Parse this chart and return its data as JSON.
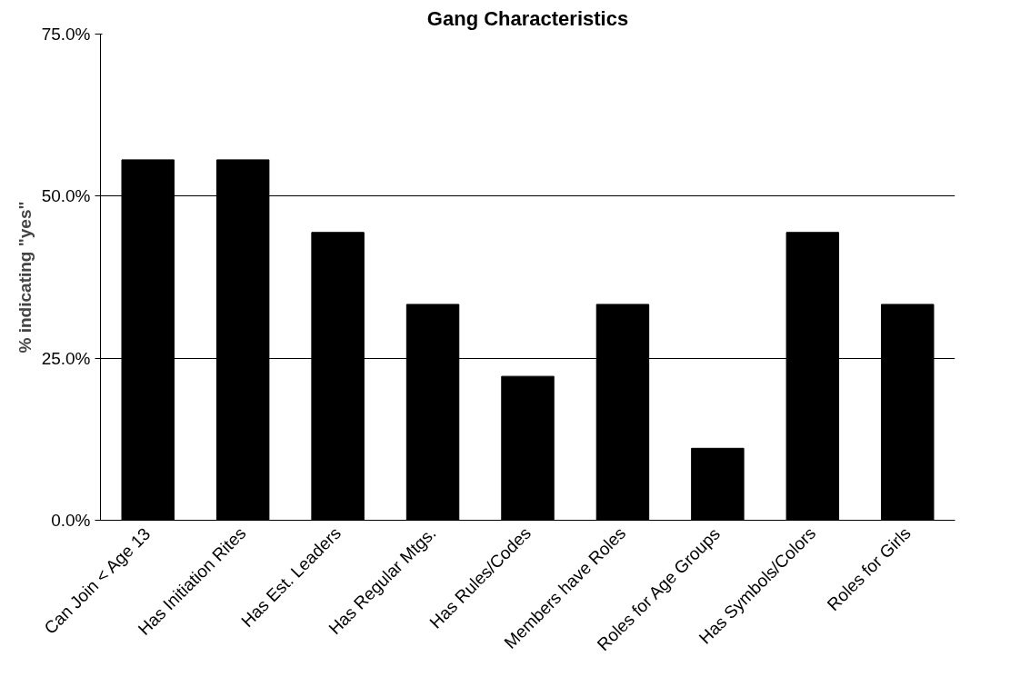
{
  "chart_data": {
    "type": "bar",
    "title": "Gang Characteristics",
    "ylabel": "% indicating \"yes\"",
    "categories": [
      "Can Join < Age 13",
      "Has Initiation Rites",
      "Has Est. Leaders",
      "Has Regular Mtgs.",
      "Has Rules/Codes",
      "Members have Roles",
      "Roles for Age Groups",
      "Has Symbols/Colors",
      "Roles for Girls"
    ],
    "values": [
      55.6,
      55.6,
      44.4,
      33.3,
      22.2,
      33.3,
      11.1,
      44.4,
      33.3
    ],
    "color": "#000000",
    "ylim": [
      0,
      75
    ],
    "yticks": [
      {
        "value": 0,
        "label": "0.0%"
      },
      {
        "value": 25,
        "label": "25.0%"
      },
      {
        "value": 50,
        "label": "50.0%"
      },
      {
        "value": 75,
        "label": "75.0%"
      }
    ],
    "grid": "y"
  }
}
